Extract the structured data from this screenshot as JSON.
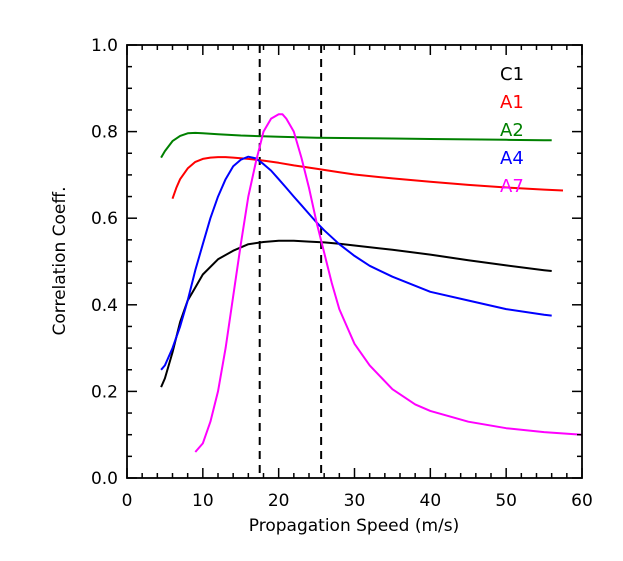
{
  "chart_data": {
    "type": "line",
    "xlabel": "Propagation Speed (m/s)",
    "ylabel": "Correlation Coeff.",
    "xlim": [
      0,
      60
    ],
    "ylim": [
      0.0,
      1.0
    ],
    "x_ticks": [
      0,
      10,
      20,
      30,
      40,
      50,
      60
    ],
    "x_tick_labels": [
      "0",
      "10",
      "20",
      "30",
      "40",
      "50",
      "60"
    ],
    "y_ticks": [
      0.0,
      0.2,
      0.4,
      0.6,
      0.8,
      1.0
    ],
    "y_tick_labels": [
      "0.0",
      "0.2",
      "0.4",
      "0.6",
      "0.8",
      "1.0"
    ],
    "grid": false,
    "legend_position": "top-right",
    "vlines": [
      17.5,
      25.6
    ],
    "series": [
      {
        "name": "C1",
        "color": "#000000",
        "x": [
          4.5,
          5,
          6,
          7,
          8,
          9,
          10,
          12,
          14,
          16,
          18,
          20,
          22,
          24,
          26,
          28,
          30,
          35,
          40,
          45,
          50,
          55,
          56
        ],
        "y": [
          0.21,
          0.23,
          0.29,
          0.36,
          0.41,
          0.44,
          0.47,
          0.505,
          0.525,
          0.54,
          0.545,
          0.548,
          0.548,
          0.546,
          0.544,
          0.541,
          0.537,
          0.527,
          0.516,
          0.503,
          0.491,
          0.48,
          0.478
        ]
      },
      {
        "name": "A1",
        "color": "#ff0000",
        "x": [
          6,
          6.5,
          7,
          8,
          9,
          10,
          11,
          12,
          13,
          14,
          16,
          18,
          20,
          22,
          25,
          28,
          30,
          35,
          40,
          45,
          50,
          55,
          57.5
        ],
        "y": [
          0.645,
          0.67,
          0.69,
          0.715,
          0.73,
          0.737,
          0.74,
          0.741,
          0.741,
          0.74,
          0.737,
          0.733,
          0.728,
          0.722,
          0.714,
          0.706,
          0.701,
          0.692,
          0.684,
          0.677,
          0.671,
          0.666,
          0.664
        ]
      },
      {
        "name": "A2",
        "color": "#008000",
        "x": [
          4.5,
          5,
          6,
          7,
          8,
          9,
          10,
          12,
          15,
          20,
          25,
          30,
          35,
          40,
          45,
          50,
          55,
          56
        ],
        "y": [
          0.74,
          0.755,
          0.778,
          0.79,
          0.796,
          0.797,
          0.796,
          0.794,
          0.791,
          0.788,
          0.786,
          0.785,
          0.784,
          0.783,
          0.782,
          0.781,
          0.78,
          0.78
        ]
      },
      {
        "name": "A4",
        "color": "#0000ff",
        "x": [
          4.5,
          5,
          6,
          7,
          8,
          9,
          10,
          11,
          12,
          13,
          14,
          15,
          16,
          17,
          18,
          19,
          20,
          21,
          22,
          23,
          24,
          25,
          26,
          28,
          30,
          32,
          35,
          40,
          45,
          50,
          55,
          56
        ],
        "y": [
          0.25,
          0.26,
          0.3,
          0.35,
          0.41,
          0.48,
          0.54,
          0.6,
          0.65,
          0.69,
          0.72,
          0.735,
          0.742,
          0.738,
          0.725,
          0.71,
          0.69,
          0.67,
          0.65,
          0.63,
          0.61,
          0.59,
          0.572,
          0.54,
          0.513,
          0.49,
          0.465,
          0.43,
          0.41,
          0.39,
          0.377,
          0.375
        ]
      },
      {
        "name": "A7",
        "color": "#ff00ff",
        "x": [
          9,
          10,
          11,
          12,
          13,
          14,
          15,
          16,
          17,
          18,
          19,
          20,
          20.5,
          21,
          22,
          23,
          24,
          25,
          26,
          27,
          28,
          29,
          30,
          32,
          35,
          38,
          40,
          45,
          50,
          55,
          60
        ],
        "y": [
          0.06,
          0.08,
          0.13,
          0.2,
          0.3,
          0.42,
          0.54,
          0.65,
          0.73,
          0.8,
          0.83,
          0.84,
          0.84,
          0.83,
          0.8,
          0.74,
          0.67,
          0.59,
          0.52,
          0.45,
          0.39,
          0.35,
          0.31,
          0.26,
          0.205,
          0.17,
          0.155,
          0.13,
          0.115,
          0.106,
          0.1
        ]
      }
    ]
  }
}
